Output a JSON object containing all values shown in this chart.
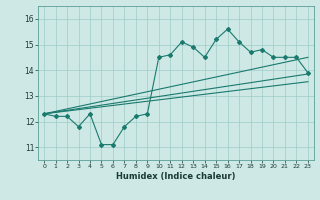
{
  "xlabel": "Humidex (Indice chaleur)",
  "ylabel": "",
  "bg_color": "#cde8e5",
  "line_color": "#1a7a6e",
  "xlim": [
    -0.5,
    23.5
  ],
  "ylim": [
    10.5,
    16.5
  ],
  "yticks": [
    11,
    12,
    13,
    14,
    15,
    16
  ],
  "xticks": [
    0,
    1,
    2,
    3,
    4,
    5,
    6,
    7,
    8,
    9,
    10,
    11,
    12,
    13,
    14,
    15,
    16,
    17,
    18,
    19,
    20,
    21,
    22,
    23
  ],
  "main_line_x": [
    0,
    1,
    2,
    3,
    4,
    5,
    6,
    7,
    8,
    9,
    10,
    11,
    12,
    13,
    14,
    15,
    16,
    17,
    18,
    19,
    20,
    21,
    22,
    23
  ],
  "main_line_y": [
    12.3,
    12.2,
    12.2,
    11.8,
    12.3,
    11.1,
    11.1,
    11.8,
    12.2,
    12.3,
    14.5,
    14.6,
    15.1,
    14.9,
    14.5,
    15.2,
    15.6,
    15.1,
    14.7,
    14.8,
    14.5,
    14.5,
    14.5,
    13.9
  ],
  "upper_line_x": [
    0,
    23
  ],
  "upper_line_y": [
    12.3,
    14.5
  ],
  "lower_line_x": [
    0,
    23
  ],
  "lower_line_y": [
    12.3,
    13.85
  ],
  "mid_line_x": [
    0,
    23
  ],
  "mid_line_y": [
    12.3,
    13.55
  ]
}
